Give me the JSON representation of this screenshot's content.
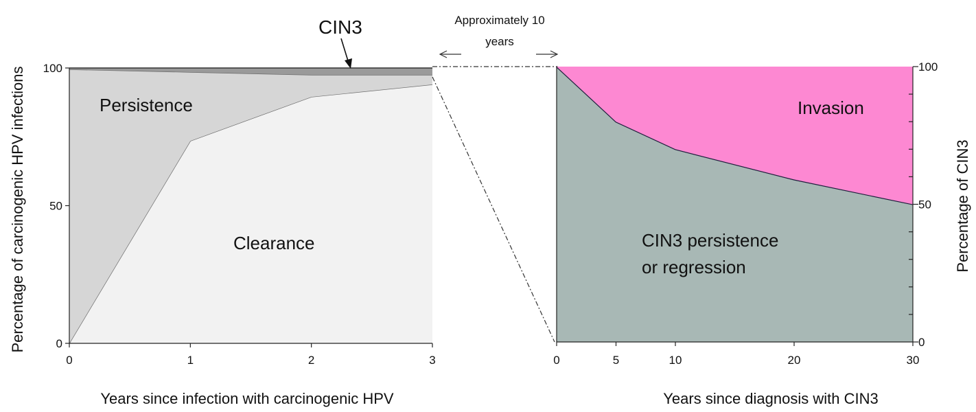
{
  "chart_data": [
    {
      "type": "area",
      "stacked": true,
      "x": [
        0,
        1,
        2,
        3
      ],
      "series": [
        {
          "name": "Clearance",
          "values": [
            0,
            73.5,
            89.5,
            94
          ],
          "color": "#f2f2f2"
        },
        {
          "name": "Persistence",
          "values": [
            99.5,
            25,
            8,
            3.5
          ],
          "color": "#d6d6d6"
        },
        {
          "name": "CIN3",
          "values": [
            0.5,
            1.5,
            2.5,
            2.5
          ],
          "color": "#9a9a9a"
        }
      ],
      "xlabel": "Years since infection with carcinogenic HPV",
      "ylabel": "Percentage of carcinogenic HPV infections",
      "xlim": [
        0,
        3
      ],
      "ylim": [
        0,
        100
      ],
      "xticks": [
        "0",
        "1",
        "2",
        "3"
      ],
      "yticks": [
        "0",
        "50",
        "100"
      ],
      "region_labels": {
        "persistence": "Persistence",
        "clearance": "Clearance"
      },
      "annotation": {
        "text": "CIN3",
        "x": 2.3,
        "y": 99
      },
      "grid": false
    },
    {
      "type": "area",
      "stacked": true,
      "x": [
        0,
        5,
        10,
        20,
        30
      ],
      "series": [
        {
          "name": "CIN3 persistence or regression",
          "values": [
            100,
            80,
            70,
            59,
            50
          ],
          "color": "#a8b8b5"
        },
        {
          "name": "Invasion",
          "values": [
            0,
            20,
            30,
            41,
            50
          ],
          "color": "#fd88d2"
        }
      ],
      "xlabel": "Years since diagnosis with CIN3",
      "ylabel": "Percentage of CIN3",
      "xlim": [
        0,
        30
      ],
      "ylim": [
        0,
        100
      ],
      "xticks": [
        "0",
        "5",
        "10",
        "20",
        "30"
      ],
      "yticks": [
        "0",
        "50",
        "100"
      ],
      "region_labels": {
        "invasion": "Invasion",
        "persistence_line1": "CIN3 persistence",
        "persistence_line2": "or regression"
      },
      "y_axis_side": "right",
      "grid": false
    }
  ],
  "gap_annotation": {
    "line1": "Approximately 10",
    "line2": "years"
  }
}
